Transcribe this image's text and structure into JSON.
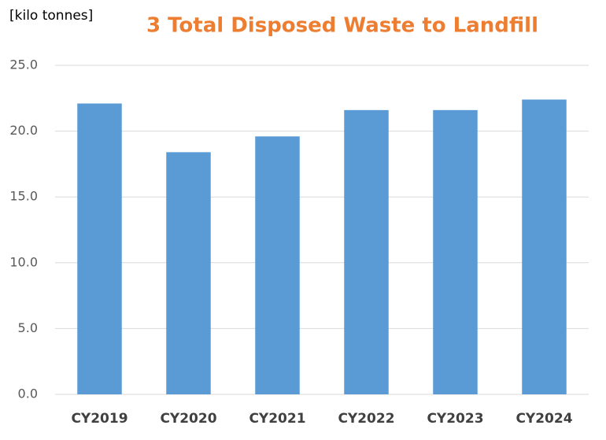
{
  "chart_data": {
    "type": "bar",
    "title": "3  Total Disposed Waste to Landfill",
    "ylabel": "[kilo tonnes]",
    "categories": [
      "CY2019",
      "CY2020",
      "CY2021",
      "CY2022",
      "CY2023",
      "CY2024"
    ],
    "values": [
      22.1,
      18.4,
      19.6,
      21.6,
      21.6,
      22.4
    ],
    "color": "#5b9bd5",
    "ylim": [
      0,
      25
    ],
    "yticks": [
      {
        "value": 0,
        "label": "0.0"
      },
      {
        "value": 5,
        "label": "5.0"
      },
      {
        "value": 10,
        "label": "10.0"
      },
      {
        "value": 15,
        "label": "15.0"
      },
      {
        "value": 20,
        "label": "20.0"
      },
      {
        "value": 25,
        "label": "25.0"
      }
    ],
    "grid": true
  }
}
